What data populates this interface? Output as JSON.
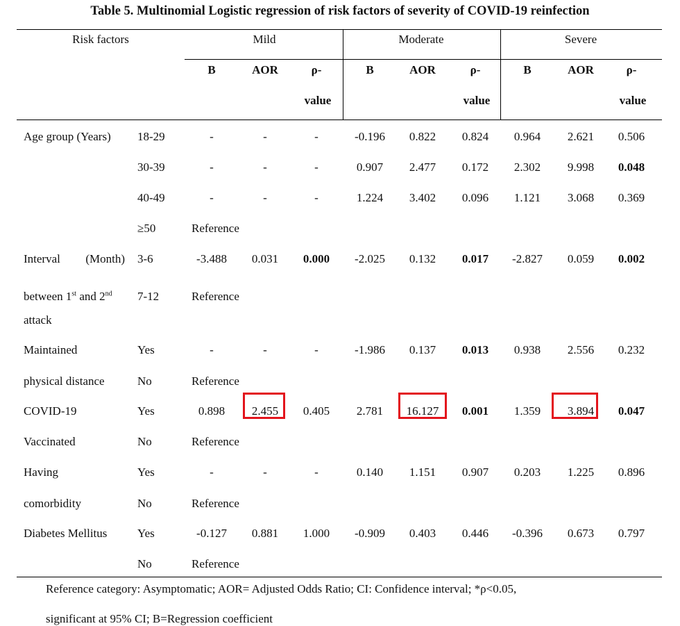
{
  "title": "Table 5. Multinomial Logistic regression of risk factors of severity of COVID-19 reinfection",
  "headers": {
    "risk_factors": "Risk factors",
    "groups": [
      "Mild",
      "Moderate",
      "Severe"
    ],
    "sub": {
      "b": "B",
      "aor": "AOR",
      "p1": "ρ-",
      "p2": "value"
    }
  },
  "rows": [
    {
      "label": "Age group (Years)",
      "cat": "18-29",
      "vals": [
        "-",
        "-",
        "-",
        "-0.196",
        "0.822",
        "0.824",
        "0.964",
        "2.621",
        "0.506"
      ]
    },
    {
      "label": "",
      "cat": "30-39",
      "vals": [
        "-",
        "-",
        "-",
        "0.907",
        "2.477",
        "0.172",
        "2.302",
        "9.998",
        "0.048"
      ]
    },
    {
      "label": "",
      "cat": "40-49",
      "vals": [
        "-",
        "-",
        "-",
        "1.224",
        "3.402",
        "0.096",
        "1.121",
        "3.068",
        "0.369"
      ]
    },
    {
      "label": "",
      "cat": "≥50",
      "vals": [
        "Reference"
      ]
    },
    {
      "label": "Interval (Month)",
      "cat": "3-6",
      "vals": [
        "-3.488",
        "0.031",
        "0.000",
        "-2.025",
        "0.132",
        "0.017",
        "-2.827",
        "0.059",
        "0.002"
      ]
    },
    {
      "label": "between 1st and 2nd",
      "cat": "7-12",
      "vals": [
        "Reference"
      ]
    },
    {
      "label": "attack",
      "cat": "",
      "vals": []
    },
    {
      "label": "Maintained",
      "cat": "Yes",
      "vals": [
        "-",
        "-",
        "-",
        "-1.986",
        "0.137",
        "0.013",
        "0.938",
        "2.556",
        "0.232"
      ]
    },
    {
      "label": "physical distance",
      "cat": "No",
      "vals": [
        "Reference"
      ]
    },
    {
      "label": "COVID-19",
      "cat": "Yes",
      "vals": [
        "0.898",
        "2.455",
        "0.405",
        "2.781",
        "16.127",
        "0.001",
        "1.359",
        "3.894",
        "0.047"
      ]
    },
    {
      "label": "Vaccinated",
      "cat": "No",
      "vals": [
        "Reference"
      ]
    },
    {
      "label": "Having",
      "cat": "Yes",
      "vals": [
        "-",
        "-",
        "-",
        "0.140",
        "1.151",
        "0.907",
        "0.203",
        "1.225",
        "0.896"
      ]
    },
    {
      "label": "comorbidity",
      "cat": "No",
      "vals": [
        "Reference"
      ]
    },
    {
      "label": "Diabetes Mellitus",
      "cat": "Yes",
      "vals": [
        "-0.127",
        "0.881",
        "1.000",
        "-0.909",
        "0.403",
        "0.446",
        "-0.396",
        "0.673",
        "0.797"
      ]
    },
    {
      "label": "",
      "cat": "No",
      "vals": [
        "Reference"
      ]
    }
  ],
  "bold_cells": [
    [
      1,
      8
    ],
    [
      4,
      2
    ],
    [
      4,
      5
    ],
    [
      4,
      8
    ],
    [
      7,
      5
    ],
    [
      9,
      5
    ],
    [
      9,
      8
    ]
  ],
  "highlighted_cells": [
    [
      9,
      1
    ],
    [
      9,
      4
    ],
    [
      9,
      7
    ]
  ],
  "highlight_color": "#e3141c",
  "footnote": {
    "line1": "Reference category: Asymptomatic; AOR= Adjusted Odds Ratio; CI: Confidence interval; *ρ<0.05,",
    "line2": "significant at 95% CI; B=Regression coefficient"
  }
}
